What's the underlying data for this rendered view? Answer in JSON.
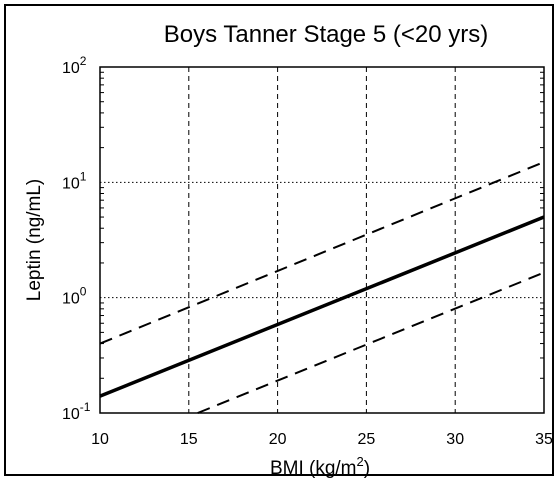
{
  "chart_data": {
    "type": "line",
    "title": "Boys Tanner Stage 5 (<20 yrs)",
    "xlabel": "BMI (kg/m²)",
    "xlabel_base": "BMI (kg/m",
    "xlabel_sup": "2",
    "xlabel_end": ")",
    "ylabel": "Leptin (ng/mL)",
    "x_scale": "linear",
    "y_scale": "log",
    "xlim": [
      10,
      35
    ],
    "ylim": [
      0.1,
      100
    ],
    "x_ticks": [
      10,
      15,
      20,
      25,
      30,
      35
    ],
    "y_ticks": [
      {
        "value": 0.1,
        "base": "10",
        "exp": "-1"
      },
      {
        "value": 1,
        "base": "10",
        "exp": "0"
      },
      {
        "value": 10,
        "base": "10",
        "exp": "1"
      },
      {
        "value": 100,
        "base": "10",
        "exp": "2"
      }
    ],
    "grid": true,
    "grid_style": "dotted",
    "series": [
      {
        "style": "solid-thick",
        "color": "#000000",
        "x": [
          10,
          35
        ],
        "y": [
          0.14,
          5.0
        ]
      },
      {
        "style": "dashed",
        "color": "#000000",
        "x": [
          10,
          35
        ],
        "y": [
          0.4,
          15.0
        ]
      },
      {
        "style": "dashed",
        "color": "#000000",
        "x": [
          15.5,
          35
        ],
        "y": [
          0.1,
          1.65
        ]
      }
    ]
  }
}
